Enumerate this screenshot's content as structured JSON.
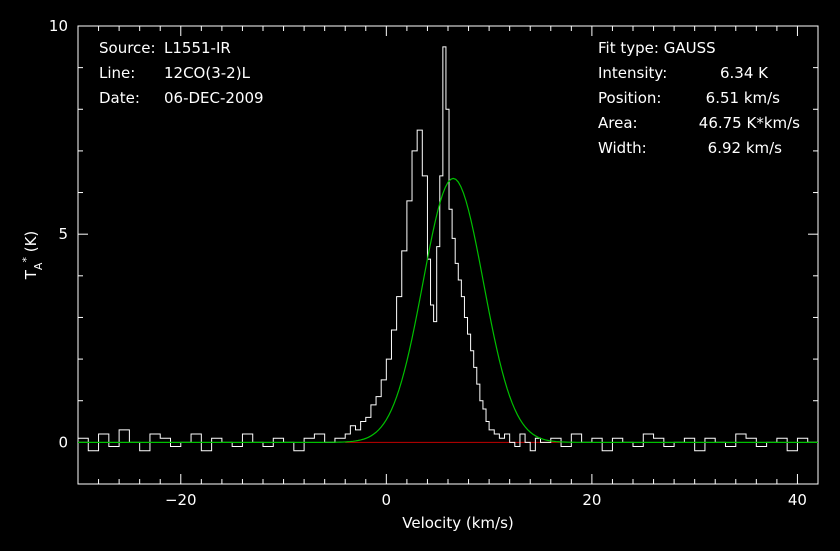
{
  "header": {
    "source_label": "Source:",
    "source_value": "L1551-IR",
    "line_label": "Line:",
    "line_value": "12CO(3-2)L",
    "date_label": "Date:",
    "date_value": "06-DEC-2009"
  },
  "fit": {
    "type_label": "Fit type:",
    "type_value": "GAUSS",
    "intensity_label": "Intensity:",
    "intensity_value": "6.34 K",
    "position_label": "Position:",
    "position_value": "6.51 km/s",
    "area_label": "Area:",
    "area_value": "46.75 K*km/s",
    "width_label": "Width:",
    "width_value": "6.92 km/s"
  },
  "chart_data": {
    "type": "line",
    "xlabel": "Velocity (km/s)",
    "ylabel_main": "T",
    "ylabel_sub": "A",
    "ylabel_sup": "*",
    "ylabel_unit": " (K)",
    "xlim": [
      -30,
      42
    ],
    "ylim": [
      -1,
      10
    ],
    "x_ticks": [
      -20,
      0,
      20,
      40
    ],
    "x_tick_labels": [
      "−20",
      "0",
      "20",
      "40"
    ],
    "y_ticks": [
      0,
      5,
      10
    ],
    "y_tick_labels": [
      "0",
      "5",
      "10"
    ],
    "grid": false,
    "colors": {
      "spectrum": "#ffffff",
      "fit": "#00c000",
      "baseline": "#c00000",
      "frame": "#ffffff"
    },
    "series": [
      {
        "x": [
          -30,
          -29,
          -28,
          -27,
          -26,
          -25,
          -24,
          -23,
          -22,
          -21,
          -20,
          -19,
          -18,
          -17,
          -16,
          -15,
          -14,
          -13,
          -12,
          -11,
          -10,
          -9,
          -8,
          -7,
          -6,
          -5,
          -4,
          -3.5,
          -3,
          -2.5,
          -2,
          -1.5,
          -1,
          -0.5,
          0,
          0.5,
          1,
          1.5,
          2,
          2.5,
          3,
          3.5,
          4,
          4.3,
          4.6,
          4.9,
          5.2,
          5.5,
          5.8,
          6.1,
          6.4,
          6.7,
          7,
          7.3,
          7.6,
          7.9,
          8.2,
          8.5,
          8.8,
          9.1,
          9.4,
          9.7,
          10,
          10.5,
          11,
          11.5,
          12,
          12.5,
          13,
          13.5,
          14,
          14.5,
          15,
          16,
          17,
          18,
          19,
          20,
          21,
          22,
          23,
          24,
          25,
          26,
          27,
          28,
          29,
          30,
          31,
          32,
          33,
          34,
          35,
          36,
          37,
          38,
          39,
          40,
          41,
          42
        ],
        "y": [
          0.1,
          -0.2,
          0.2,
          -0.1,
          0.3,
          0.0,
          -0.2,
          0.2,
          0.1,
          -0.1,
          0.0,
          0.2,
          -0.2,
          0.1,
          0.0,
          -0.1,
          0.2,
          0.0,
          -0.1,
          0.1,
          0.0,
          -0.2,
          0.1,
          0.2,
          0.0,
          0.1,
          0.2,
          0.4,
          0.3,
          0.5,
          0.6,
          0.9,
          1.1,
          1.5,
          2.0,
          2.7,
          3.5,
          4.6,
          5.8,
          7.0,
          7.5,
          6.4,
          4.4,
          3.3,
          2.9,
          4.7,
          6.4,
          9.5,
          8.0,
          5.6,
          4.9,
          4.3,
          3.9,
          3.5,
          3.0,
          2.6,
          2.2,
          1.8,
          1.4,
          1.0,
          0.8,
          0.5,
          0.3,
          0.2,
          0.1,
          0.2,
          0.0,
          -0.1,
          0.2,
          0.0,
          -0.2,
          0.1,
          0.0,
          0.1,
          -0.1,
          0.2,
          0.0,
          0.1,
          -0.2,
          0.1,
          0.0,
          -0.1,
          0.2,
          0.1,
          -0.1,
          0.0,
          0.1,
          -0.2,
          0.1,
          0.0,
          -0.1,
          0.2,
          0.1,
          -0.1,
          0.0,
          0.1,
          -0.2,
          0.1,
          0.0,
          0.1
        ]
      },
      {
        "fit_amplitude": 6.34,
        "fit_center": 6.51,
        "fit_fwhm": 6.92
      }
    ]
  }
}
